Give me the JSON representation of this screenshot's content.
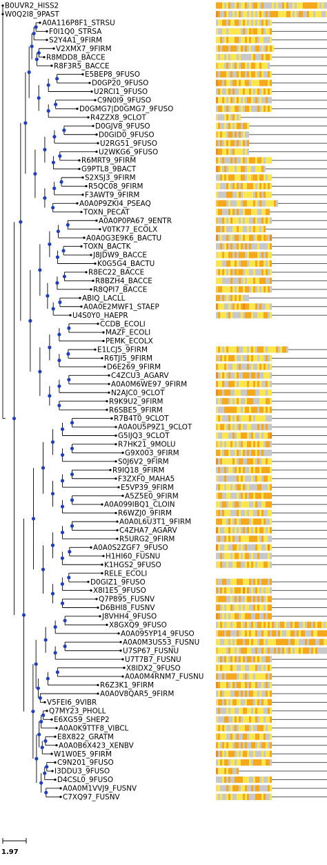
{
  "leaves": [
    "B0UVR2_HISS2",
    "W0Q2I8_9PAST",
    "A0A116P8F1_STRSU",
    "F0I1Q0_STRSA",
    "S2Y4A1_9FIRM",
    "V2XMX7_9FIRM",
    "R8MDD8_BACCE",
    "R8F3R5_BACCE",
    "E5BEP8_9FUSO",
    "D0GP20_9FUSO",
    "U2RCI1_9FUSO",
    "C9N0I9_9FUSO",
    "D0GMG7|D0GMG7_9FUSO",
    "R4ZZX8_9CLOT",
    "D0GJV8_9FUSO",
    "D0GID0_9FUSO",
    "U2RG51_9FUSO",
    "U2WKG6_9FUSO",
    "R6MRT9_9FIRM",
    "G9PTL8_9BACT",
    "S2XSJ3_9FIRM",
    "R5QC08_9FIRM",
    "F3AWT9_9FIRM",
    "A0A0P9ZKI4_PSEAQ",
    "TOXN_PECAT",
    "A0A0P0PA67_9ENTR",
    "V0TK77_ECOLX",
    "A0A0G3E9K6_BACTU",
    "TOXN_BACTK",
    "J8JDW9_BACCE",
    "K0G5G4_BACTU",
    "R8EC22_BACCE",
    "R8BZH4_BACCE",
    "R8QPI7_BACCE",
    "ABIQ_LACLL",
    "A0A0E2MWF1_STAEP",
    "U4S0Y0_HAEPR",
    "CCDB_ECOLI",
    "MAZF_ECOLI",
    "PEMK_ECOLX",
    "E1LCJ5_9FIRM",
    "R6TJI5_9FIRM",
    "D6E269_9FIRM",
    "C4ZCU3_AGARV",
    "A0A0M6WE97_9FIRM",
    "N2AJC0_9CLOT",
    "R9K9U2_9FIRM",
    "R6SBE5_9FIRM",
    "R7B4T0_9CLOT",
    "A0A0U5P9Z1_9CLOT",
    "G5IJQ3_9CLOT",
    "R7HK21_9MOLU",
    "G9X003_9FIRM",
    "S0J6V2_9FIRM",
    "R9IQ18_9FIRM",
    "F3ZXF0_MAHA5",
    "E5VP39_9FIRM",
    "A5Z5E0_9FIRM",
    "A0A099IBQ1_CLOIN",
    "R6WZJ0_9FIRM",
    "A0A0L6U3T1_9FIRM",
    "C4ZHA7_AGARV",
    "R5URG2_9FIRM",
    "A0A0S2ZGF7_9FUSO",
    "H1HI60_FUSNU",
    "K1HGS2_9FUSO",
    "RELE_ECOLI",
    "D0GIZ1_9FUSO",
    "X8I1E5_9FUSO",
    "Q7P895_FUSNV",
    "D6BHI8_FUSNV",
    "J8VHH4_9FUSO",
    "X8GXQ9_9FUSO",
    "A0A095YP14_9FUSO",
    "A0A0M3US53_FUSNU",
    "U7SP67_FUSNU",
    "U7T7B7_FUSNU",
    "X8IDX2_9FUSO",
    "A0A0M4RNM7_FUSNU",
    "R6Z3K1_9FIRM",
    "A0A0V8QAR5_9FIRM",
    "V5FEI6_9VIBR",
    "Q7MY23_PHOLL",
    "E6XG59_SHEP2",
    "A0A0K9TTF8_VIBCL",
    "E8X822_GRATM",
    "A0A0B6X423_XENBV",
    "W1W0E5_9FIRM",
    "C9N201_9FUSO",
    "I3DDU3_9FUSO",
    "D4CSL0_9FUSO",
    "A0A0M1VVJ9_FUSNV",
    "C7XQ97_FUSNV"
  ],
  "leaf_depth": [
    4,
    4,
    58,
    68,
    68,
    78,
    64,
    75,
    120,
    130,
    133,
    138,
    112,
    128,
    135,
    140,
    142,
    140,
    115,
    115,
    120,
    125,
    120,
    112,
    118,
    140,
    145,
    122,
    118,
    132,
    138,
    125,
    135,
    132,
    116,
    118,
    102,
    142,
    150,
    150,
    138,
    148,
    152,
    158,
    158,
    158,
    155,
    155,
    162,
    168,
    168,
    168,
    178,
    168,
    160,
    168,
    172,
    178,
    148,
    168,
    170,
    170,
    170,
    132,
    150,
    148,
    148,
    128,
    132,
    140,
    142,
    145,
    155,
    172,
    175,
    175,
    178,
    180,
    178,
    142,
    142,
    65,
    68,
    75,
    82,
    80,
    82,
    75,
    80,
    76,
    80,
    88,
    88
  ],
  "sequence_bar_length": [
    1,
    1,
    0.5,
    0.5,
    0.5,
    0.52,
    0.5,
    0.48,
    0.5,
    0.5,
    0.5,
    0.5,
    0.5,
    0.22,
    0.3,
    0.3,
    0.3,
    0.3,
    0.5,
    0.45,
    0.5,
    0.5,
    0.5,
    0.55,
    0.48,
    0.5,
    0.45,
    0.5,
    0.5,
    0.5,
    0.5,
    0.5,
    0.5,
    0.5,
    0.3,
    0.5,
    0.5,
    0.0,
    0.0,
    0.0,
    0.65,
    0.5,
    0.5,
    0.5,
    0.5,
    0.5,
    0.5,
    0.5,
    0.5,
    0.5,
    0.5,
    0.5,
    0.5,
    0.5,
    0.5,
    0.5,
    0.5,
    0.5,
    0.5,
    0.5,
    0.5,
    0.5,
    0.5,
    0.5,
    0.5,
    0.5,
    0.0,
    0.5,
    0.5,
    0.5,
    0.5,
    0.5,
    1,
    1,
    1,
    1,
    0.5,
    0.5,
    0.5,
    0.5,
    0.5,
    0.5,
    0.5,
    0.5,
    0.5,
    0.5,
    0.5,
    0.5,
    0.5,
    0.2,
    0.5,
    0.5,
    0.5
  ],
  "colors": {
    "line": "#000000",
    "node": "#1f3fbf",
    "bar_palette": [
      "#f6a81c",
      "#f9c22e",
      "#fbe64d",
      "#f7d87c",
      "#c8c8c8",
      "#f08a1c",
      "#ffffff"
    ]
  },
  "scale": {
    "label": "1.97"
  }
}
